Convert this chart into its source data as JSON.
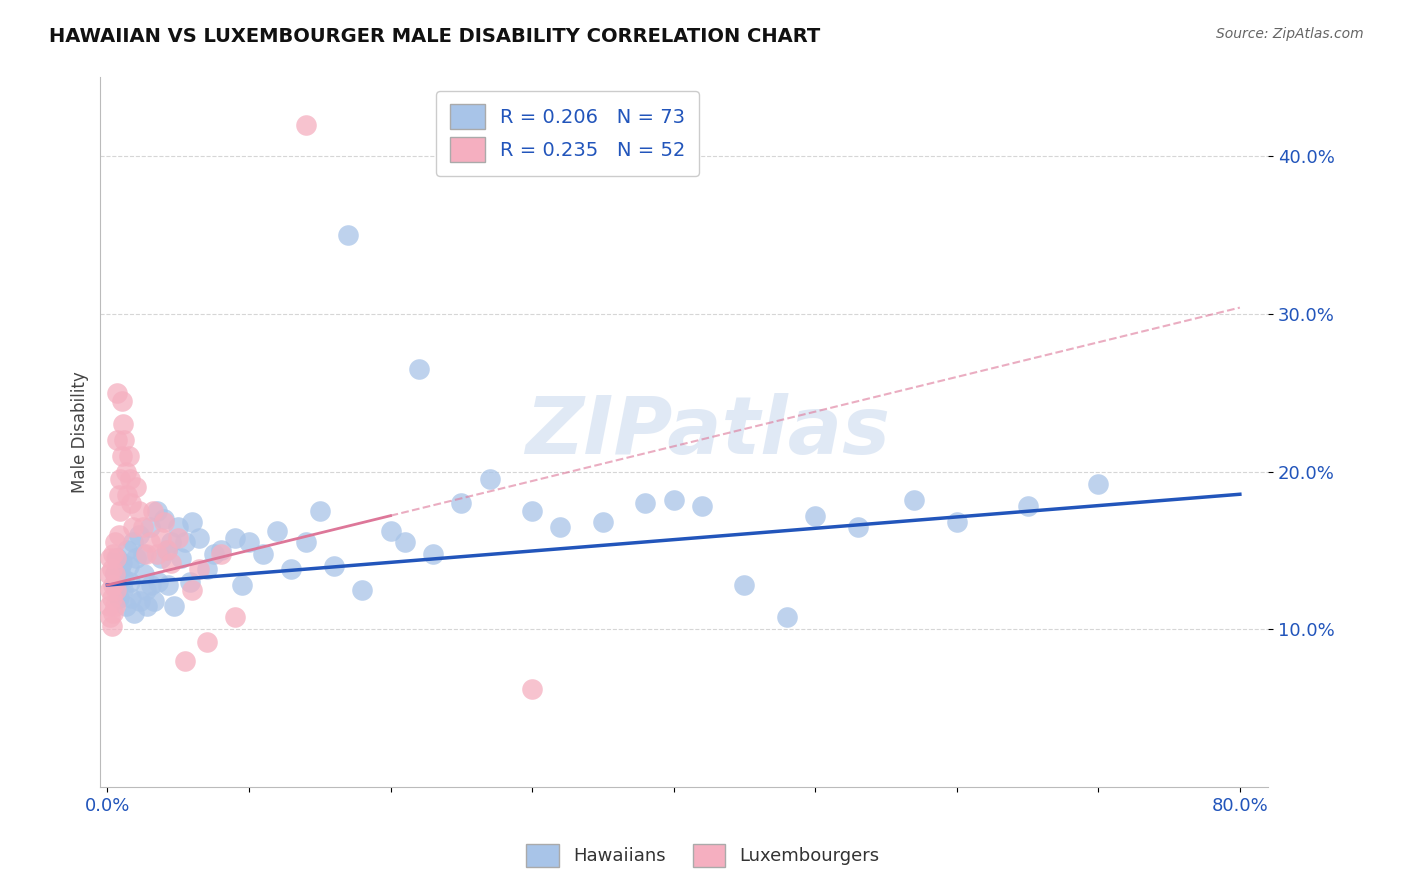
{
  "title": "HAWAIIAN VS LUXEMBOURGER MALE DISABILITY CORRELATION CHART",
  "source": "Source: ZipAtlas.com",
  "ylabel": "Male Disability",
  "hawaiian_R": 0.206,
  "hawaiian_N": 73,
  "luxembourger_R": 0.235,
  "luxembourger_N": 52,
  "hawaiian_color": "#a8c4e8",
  "luxembourger_color": "#f5afc0",
  "hawaiian_line_color": "#2255bb",
  "luxembourger_line_color": "#dd7799",
  "legend_label_hawaiian": "Hawaiians",
  "legend_label_luxembourger": "Luxembourgers",
  "hawaiian_intercept": 0.128,
  "hawaiian_slope": 0.072,
  "luxembourger_intercept": 0.128,
  "luxembourger_slope": 0.22,
  "xlim": [
    -0.005,
    0.82
  ],
  "ylim": [
    0.0,
    0.45
  ],
  "yticks": [
    0.1,
    0.2,
    0.3,
    0.4
  ],
  "ytick_labels": [
    "10.0%",
    "20.0%",
    "30.0%",
    "40.0%"
  ],
  "watermark": "ZIPatlas",
  "background_color": "#ffffff",
  "grid_color": "#cccccc",
  "hawaiian_x": [
    0.005,
    0.006,
    0.007,
    0.008,
    0.009,
    0.01,
    0.011,
    0.012,
    0.013,
    0.014,
    0.015,
    0.016,
    0.017,
    0.018,
    0.019,
    0.02,
    0.022,
    0.023,
    0.025,
    0.026,
    0.027,
    0.028,
    0.03,
    0.031,
    0.033,
    0.035,
    0.036,
    0.038,
    0.04,
    0.042,
    0.043,
    0.045,
    0.047,
    0.05,
    0.052,
    0.055,
    0.058,
    0.06,
    0.065,
    0.07,
    0.075,
    0.08,
    0.09,
    0.095,
    0.1,
    0.11,
    0.12,
    0.13,
    0.14,
    0.15,
    0.16,
    0.17,
    0.18,
    0.2,
    0.21,
    0.22,
    0.23,
    0.25,
    0.27,
    0.3,
    0.32,
    0.35,
    0.38,
    0.4,
    0.42,
    0.45,
    0.48,
    0.5,
    0.53,
    0.57,
    0.6,
    0.65,
    0.7
  ],
  "hawaiian_y": [
    0.135,
    0.128,
    0.145,
    0.12,
    0.138,
    0.142,
    0.125,
    0.132,
    0.115,
    0.15,
    0.14,
    0.13,
    0.12,
    0.155,
    0.11,
    0.145,
    0.16,
    0.118,
    0.148,
    0.135,
    0.125,
    0.115,
    0.165,
    0.128,
    0.118,
    0.175,
    0.13,
    0.145,
    0.17,
    0.15,
    0.128,
    0.155,
    0.115,
    0.165,
    0.145,
    0.155,
    0.13,
    0.168,
    0.158,
    0.138,
    0.148,
    0.15,
    0.158,
    0.128,
    0.155,
    0.148,
    0.162,
    0.138,
    0.155,
    0.175,
    0.14,
    0.35,
    0.125,
    0.162,
    0.155,
    0.265,
    0.148,
    0.18,
    0.195,
    0.175,
    0.165,
    0.168,
    0.18,
    0.182,
    0.178,
    0.128,
    0.108,
    0.172,
    0.165,
    0.182,
    0.168,
    0.178,
    0.192
  ],
  "luxembourger_x": [
    0.001,
    0.001,
    0.002,
    0.002,
    0.002,
    0.003,
    0.003,
    0.003,
    0.004,
    0.004,
    0.004,
    0.005,
    0.005,
    0.005,
    0.006,
    0.006,
    0.007,
    0.007,
    0.008,
    0.008,
    0.009,
    0.009,
    0.01,
    0.01,
    0.011,
    0.012,
    0.013,
    0.014,
    0.015,
    0.016,
    0.017,
    0.018,
    0.02,
    0.022,
    0.025,
    0.027,
    0.03,
    0.032,
    0.035,
    0.038,
    0.04,
    0.042,
    0.045,
    0.05,
    0.055,
    0.06,
    0.065,
    0.07,
    0.08,
    0.09,
    0.14,
    0.3
  ],
  "luxembourger_y": [
    0.135,
    0.115,
    0.145,
    0.125,
    0.108,
    0.138,
    0.12,
    0.102,
    0.148,
    0.128,
    0.11,
    0.155,
    0.135,
    0.115,
    0.145,
    0.125,
    0.25,
    0.22,
    0.185,
    0.16,
    0.195,
    0.175,
    0.245,
    0.21,
    0.23,
    0.22,
    0.2,
    0.185,
    0.21,
    0.195,
    0.18,
    0.165,
    0.19,
    0.175,
    0.165,
    0.148,
    0.155,
    0.175,
    0.148,
    0.158,
    0.168,
    0.15,
    0.142,
    0.158,
    0.08,
    0.125,
    0.138,
    0.092,
    0.148,
    0.108,
    0.42,
    0.062
  ]
}
